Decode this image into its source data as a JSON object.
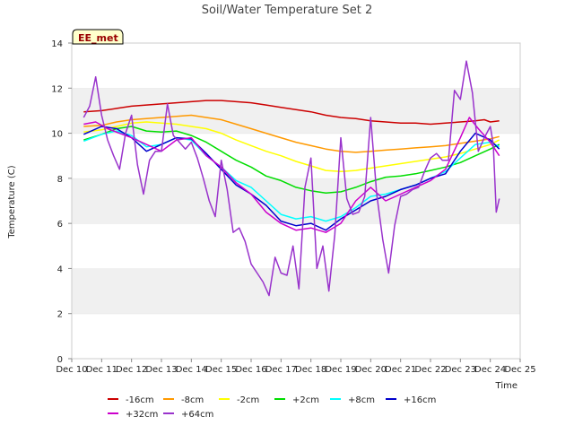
{
  "chart_data": {
    "type": "line",
    "title": "Soil/Water Temperature Set 2",
    "xlabel": "Time",
    "ylabel": "Temperature (C)",
    "annotation": "EE_met",
    "xlim": [
      10,
      25
    ],
    "ylim": [
      0,
      14
    ],
    "x_ticks": [
      10,
      11,
      12,
      13,
      14,
      15,
      16,
      17,
      18,
      19,
      20,
      21,
      22,
      23,
      24,
      25
    ],
    "x_tick_labels": [
      "Dec 10",
      "Dec 11",
      "Dec 12",
      "Dec 13",
      "Dec 14",
      "Dec 15",
      "Dec 16",
      "Dec 17",
      "Dec 18",
      "Dec 19",
      "Dec 20",
      "Dec 21",
      "Dec 22",
      "Dec 23",
      "Dec 24",
      "Dec 25"
    ],
    "y_ticks": [
      0,
      2,
      4,
      6,
      8,
      10,
      12,
      14
    ],
    "y_tick_labels": [
      "0",
      "2",
      "4",
      "6",
      "8",
      "10",
      "12",
      "14"
    ],
    "grid_bands": true,
    "legend_placement": "bottom",
    "series": [
      {
        "name": "-16cm",
        "color": "#cc0000",
        "x": [
          10.4,
          11.0,
          11.5,
          12.0,
          12.5,
          13.0,
          13.5,
          14.0,
          14.5,
          15.0,
          15.5,
          16.0,
          16.5,
          17.0,
          17.5,
          18.0,
          18.5,
          19.0,
          19.5,
          20.0,
          20.5,
          21.0,
          21.5,
          22.0,
          22.5,
          23.0,
          23.5,
          23.8,
          24.0,
          24.3
        ],
        "y": [
          10.95,
          11.0,
          11.1,
          11.2,
          11.25,
          11.3,
          11.35,
          11.4,
          11.45,
          11.45,
          11.4,
          11.35,
          11.25,
          11.15,
          11.05,
          10.95,
          10.8,
          10.7,
          10.65,
          10.55,
          10.5,
          10.45,
          10.45,
          10.4,
          10.45,
          10.5,
          10.55,
          10.6,
          10.5,
          10.55
        ]
      },
      {
        "name": "-8cm",
        "color": "#ff9900",
        "x": [
          10.4,
          11.0,
          11.5,
          12.0,
          12.5,
          13.0,
          13.5,
          14.0,
          14.5,
          15.0,
          15.5,
          16.0,
          16.5,
          17.0,
          17.5,
          18.0,
          18.5,
          19.0,
          19.5,
          20.0,
          20.5,
          21.0,
          21.5,
          22.0,
          22.5,
          23.0,
          23.5,
          24.0,
          24.3
        ],
        "y": [
          10.3,
          10.35,
          10.5,
          10.6,
          10.65,
          10.7,
          10.75,
          10.8,
          10.7,
          10.6,
          10.4,
          10.2,
          10.0,
          9.8,
          9.6,
          9.45,
          9.3,
          9.2,
          9.15,
          9.2,
          9.25,
          9.3,
          9.35,
          9.4,
          9.45,
          9.55,
          9.65,
          9.75,
          9.85
        ]
      },
      {
        "name": "-2cm",
        "color": "#ffff00",
        "x": [
          10.4,
          11.0,
          11.5,
          12.0,
          12.5,
          13.0,
          13.5,
          14.0,
          14.5,
          15.0,
          15.5,
          16.0,
          16.5,
          17.0,
          17.5,
          18.0,
          18.5,
          19.0,
          19.5,
          20.0,
          20.5,
          21.0,
          21.5,
          22.0,
          22.5,
          23.0,
          23.5,
          24.0,
          24.3
        ],
        "y": [
          10.05,
          10.15,
          10.3,
          10.45,
          10.5,
          10.45,
          10.4,
          10.3,
          10.2,
          10.0,
          9.7,
          9.45,
          9.2,
          9.0,
          8.75,
          8.55,
          8.35,
          8.3,
          8.35,
          8.45,
          8.55,
          8.65,
          8.75,
          8.85,
          8.95,
          9.1,
          9.3,
          9.5,
          9.7
        ]
      },
      {
        "name": "+2cm",
        "color": "#00dd00",
        "x": [
          10.4,
          11.0,
          11.5,
          12.0,
          12.5,
          13.0,
          13.5,
          14.0,
          14.5,
          15.0,
          15.5,
          16.0,
          16.5,
          17.0,
          17.5,
          18.0,
          18.5,
          19.0,
          19.5,
          20.0,
          20.5,
          21.0,
          21.5,
          22.0,
          22.5,
          23.0,
          23.5,
          24.0,
          24.3
        ],
        "y": [
          9.7,
          9.95,
          10.2,
          10.3,
          10.1,
          10.05,
          10.1,
          9.9,
          9.6,
          9.2,
          8.8,
          8.5,
          8.1,
          7.9,
          7.6,
          7.45,
          7.35,
          7.4,
          7.6,
          7.85,
          8.05,
          8.1,
          8.2,
          8.35,
          8.5,
          8.7,
          9.0,
          9.3,
          9.5
        ]
      },
      {
        "name": "+8cm",
        "color": "#00ffff",
        "x": [
          10.4,
          11.0,
          11.5,
          12.0,
          12.5,
          13.0,
          13.5,
          14.0,
          14.5,
          15.0,
          15.5,
          16.0,
          16.5,
          17.0,
          17.5,
          18.0,
          18.5,
          19.0,
          19.5,
          20.0,
          20.5,
          21.0,
          21.5,
          22.0,
          22.5,
          23.0,
          23.5,
          24.0,
          24.3
        ],
        "y": [
          9.65,
          9.95,
          10.1,
          9.9,
          9.4,
          9.5,
          9.8,
          9.7,
          9.0,
          8.5,
          7.9,
          7.6,
          7.0,
          6.4,
          6.2,
          6.3,
          6.1,
          6.3,
          6.7,
          7.2,
          7.3,
          7.5,
          7.7,
          8.0,
          8.3,
          8.9,
          9.5,
          9.6,
          9.4
        ]
      },
      {
        "name": "+16cm",
        "color": "#0000cc",
        "x": [
          10.4,
          11.0,
          11.5,
          12.0,
          12.5,
          13.0,
          13.5,
          14.0,
          14.5,
          15.0,
          15.5,
          16.0,
          16.5,
          17.0,
          17.5,
          18.0,
          18.5,
          19.0,
          19.5,
          20.0,
          20.5,
          21.0,
          21.5,
          22.0,
          22.5,
          23.0,
          23.5,
          24.0,
          24.3
        ],
        "y": [
          9.95,
          10.3,
          10.2,
          9.8,
          9.2,
          9.5,
          9.8,
          9.75,
          9.1,
          8.4,
          7.7,
          7.3,
          6.8,
          6.1,
          5.9,
          6.0,
          5.7,
          6.2,
          6.6,
          7.0,
          7.2,
          7.5,
          7.7,
          8.0,
          8.2,
          9.2,
          10.0,
          9.7,
          9.3
        ]
      },
      {
        "name": "+32cm",
        "color": "#cc00cc",
        "x": [
          10.4,
          10.8,
          11.2,
          11.6,
          12.0,
          12.5,
          13.0,
          13.5,
          14.0,
          14.5,
          15.0,
          15.5,
          16.0,
          16.5,
          17.0,
          17.5,
          18.0,
          18.5,
          19.0,
          19.5,
          20.0,
          20.5,
          21.0,
          21.5,
          22.0,
          22.5,
          23.0,
          23.3,
          23.6,
          24.0,
          24.3
        ],
        "y": [
          10.4,
          10.5,
          10.2,
          10.0,
          9.8,
          9.5,
          9.2,
          9.7,
          9.8,
          9.0,
          8.5,
          7.8,
          7.3,
          6.5,
          6.0,
          5.7,
          5.8,
          5.6,
          6.0,
          7.0,
          7.6,
          7.0,
          7.3,
          7.6,
          7.9,
          8.4,
          9.8,
          10.7,
          10.2,
          9.6,
          9.0
        ]
      },
      {
        "name": "+64cm",
        "color": "#9933cc",
        "x": [
          10.4,
          10.6,
          10.8,
          11.0,
          11.2,
          11.4,
          11.6,
          11.8,
          12.0,
          12.2,
          12.4,
          12.6,
          12.8,
          13.0,
          13.2,
          13.4,
          13.6,
          13.8,
          14.0,
          14.2,
          14.4,
          14.6,
          14.8,
          15.0,
          15.2,
          15.4,
          15.6,
          15.8,
          16.0,
          16.2,
          16.4,
          16.6,
          16.8,
          17.0,
          17.2,
          17.4,
          17.6,
          17.8,
          18.0,
          18.2,
          18.4,
          18.6,
          18.8,
          19.0,
          19.2,
          19.4,
          19.6,
          19.8,
          20.0,
          20.2,
          20.4,
          20.6,
          20.8,
          21.0,
          21.2,
          21.4,
          21.6,
          21.8,
          22.0,
          22.2,
          22.4,
          22.6,
          22.8,
          23.0,
          23.2,
          23.4,
          23.6,
          23.8,
          24.0,
          24.1,
          24.2,
          24.3
        ],
        "y": [
          10.7,
          11.2,
          12.5,
          10.8,
          9.7,
          9.0,
          8.4,
          10.0,
          10.8,
          8.6,
          7.3,
          8.8,
          9.2,
          9.2,
          11.3,
          9.9,
          9.6,
          9.3,
          9.6,
          8.9,
          8.0,
          7.0,
          6.3,
          8.8,
          7.5,
          5.6,
          5.8,
          5.2,
          4.2,
          3.8,
          3.4,
          2.8,
          4.5,
          3.8,
          3.7,
          5.0,
          3.1,
          7.6,
          8.9,
          4.0,
          5.0,
          3.0,
          5.5,
          9.8,
          7.1,
          6.4,
          6.5,
          7.2,
          10.7,
          7.3,
          5.3,
          3.8,
          5.9,
          7.2,
          7.3,
          7.5,
          7.6,
          8.3,
          8.9,
          9.1,
          8.8,
          8.8,
          11.9,
          11.5,
          13.2,
          11.8,
          9.2,
          9.8,
          10.3,
          9.5,
          6.5,
          7.1
        ]
      }
    ]
  }
}
